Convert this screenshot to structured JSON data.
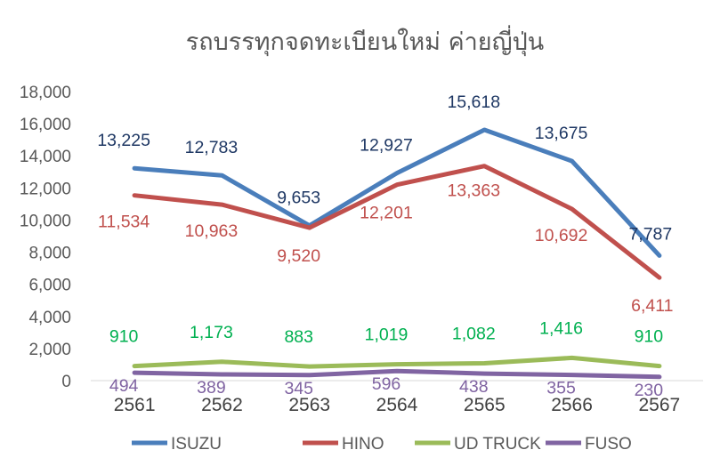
{
  "chart_data": {
    "type": "line",
    "title": "รถบรรทุกจดทะเบียนใหม่ ค่ายญี่ปุ่น",
    "categories": [
      "2561",
      "2562",
      "2563",
      "2564",
      "2565",
      "2566",
      "2567"
    ],
    "ylim": [
      0,
      18000
    ],
    "yticks": [
      "0",
      "2,000",
      "4,000",
      "6,000",
      "8,000",
      "10,000",
      "12,000",
      "14,000",
      "16,000",
      "18,000"
    ],
    "grid": false,
    "legend_position": "bottom",
    "series": [
      {
        "name": "ISUZU",
        "color": "#4a7ebb",
        "label_color": "#1f3864",
        "values": [
          13225,
          12783,
          9653,
          12927,
          15618,
          13675,
          7787
        ],
        "labels": [
          "13,225",
          "12,783",
          "9,653",
          "12,927",
          "15,618",
          "13,675",
          "7,787"
        ]
      },
      {
        "name": "HINO",
        "color": "#c0504d",
        "label_color": "#c0504d",
        "values": [
          11534,
          10963,
          9520,
          12201,
          13363,
          10692,
          6411
        ],
        "labels": [
          "11,534",
          "10,963",
          "9,520",
          "12,201",
          "13,363",
          "10,692",
          "6,411"
        ]
      },
      {
        "name": "UD TRUCK",
        "color": "#9bbb59",
        "label_color": "#00b050",
        "values": [
          910,
          1173,
          883,
          1019,
          1082,
          1416,
          910
        ],
        "labels": [
          "910",
          "1,173",
          "883",
          "1,019",
          "1,082",
          "1,416",
          "910"
        ]
      },
      {
        "name": "FUSO",
        "color": "#8064a2",
        "label_color": "#8064a2",
        "values": [
          494,
          389,
          345,
          596,
          438,
          355,
          230
        ],
        "labels": [
          "494",
          "389",
          "345",
          "596",
          "438",
          "355",
          "230"
        ]
      }
    ]
  }
}
